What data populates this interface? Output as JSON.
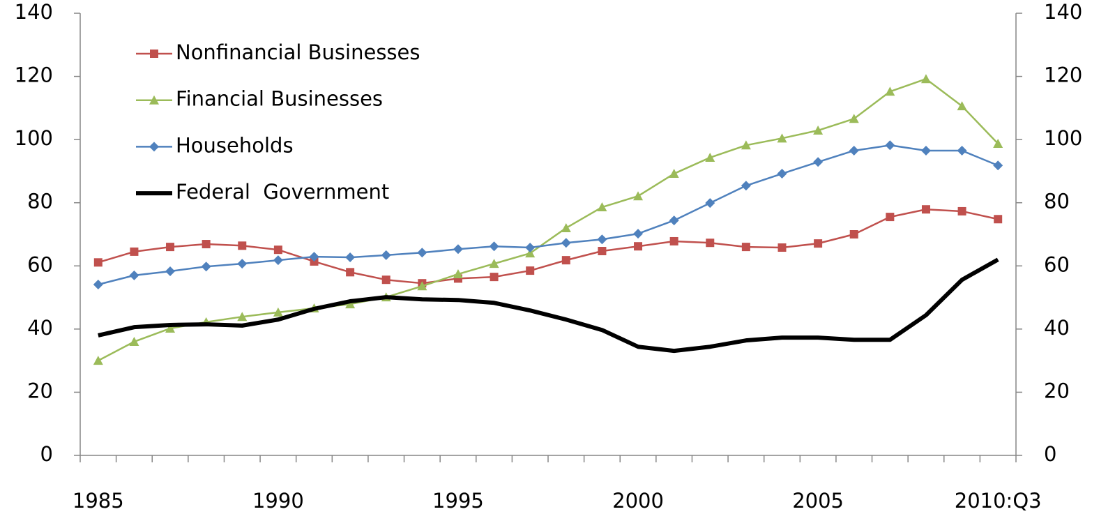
{
  "chart_data": {
    "type": "line",
    "categories": [
      "1985",
      null,
      null,
      null,
      null,
      "1990",
      null,
      null,
      null,
      null,
      "1995",
      null,
      null,
      null,
      null,
      "2000",
      null,
      null,
      null,
      null,
      "2005",
      null,
      null,
      null,
      null,
      "2010:Q3"
    ],
    "series": [
      {
        "name": "Nonfinancial Businesses",
        "color": "#c0504d",
        "marker": "square",
        "values": [
          61.1,
          64.5,
          66,
          66.9,
          66.4,
          65.1,
          61.4,
          58,
          55.6,
          54.5,
          56,
          56.5,
          58.5,
          61.8,
          64.7,
          66.2,
          67.8,
          67.3,
          66,
          65.8,
          67.1,
          70,
          75.5,
          77.9,
          77.3,
          74.8
        ]
      },
      {
        "name": "Financial Businesses",
        "color": "#9bbb59",
        "marker": "triangle",
        "values": [
          30,
          36,
          40.2,
          42.2,
          43.9,
          45.3,
          46.6,
          47.9,
          50.1,
          53.6,
          57.4,
          60.7,
          64,
          72,
          78.6,
          82.1,
          89.2,
          94.3,
          98.2,
          100.4,
          102.9,
          106.6,
          115.2,
          119.2,
          110.6,
          98.7
        ]
      },
      {
        "name": "Households",
        "color": "#4f81bd",
        "marker": "diamond",
        "values": [
          54.1,
          57,
          58.3,
          59.8,
          60.7,
          61.8,
          62.9,
          62.7,
          63.4,
          64.2,
          65.3,
          66.2,
          65.8,
          67.3,
          68.4,
          70.2,
          74.4,
          79.9,
          85.4,
          89.2,
          92.9,
          96.5,
          98.2,
          96.5,
          96.5,
          91.8
        ]
      },
      {
        "name": "Federal  Government",
        "color": "#000000",
        "marker": "none",
        "values": [
          38,
          40.6,
          41.3,
          41.5,
          41.1,
          43,
          46.4,
          48.8,
          50.1,
          49.4,
          49.2,
          48.3,
          45.9,
          43,
          39.7,
          34.4,
          33.1,
          34.4,
          36.4,
          37.3,
          37.3,
          36.6,
          36.6,
          44.4,
          55.6,
          62
        ]
      }
    ],
    "ylim": [
      0,
      140
    ],
    "yticks": [
      0,
      20,
      40,
      60,
      80,
      100,
      120,
      140
    ],
    "y2lim": [
      0,
      140
    ],
    "y2ticks": [
      0,
      20,
      40,
      60,
      80,
      100,
      120,
      140
    ],
    "legend": "top-left",
    "grid": false
  }
}
